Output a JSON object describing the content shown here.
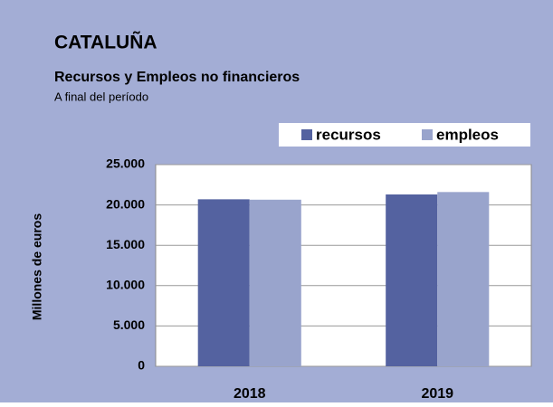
{
  "chart_data": {
    "type": "bar",
    "title": "CATALUÑA",
    "subtitle": "Recursos y Empleos no financieros",
    "note": "A final del período",
    "y_label": "Millones de euros",
    "categories": [
      "2018",
      "2019"
    ],
    "series": [
      {
        "name": "recursos",
        "color": "#5462a0",
        "values": [
          20700,
          21300
        ]
      },
      {
        "name": "empleos",
        "color": "#99a4cc",
        "values": [
          20650,
          21600
        ]
      }
    ],
    "ylim": [
      0,
      25000
    ],
    "yticks": [
      0,
      {
        "value": 5000,
        "label": "5.000"
      },
      {
        "value": 10000,
        "label": "10.000"
      },
      {
        "value": 15000,
        "label": "15.000"
      },
      {
        "value": 20000,
        "label": "20.000"
      },
      {
        "value": 25000,
        "label": "25.000"
      }
    ],
    "grid": true,
    "legend": "top-right"
  }
}
